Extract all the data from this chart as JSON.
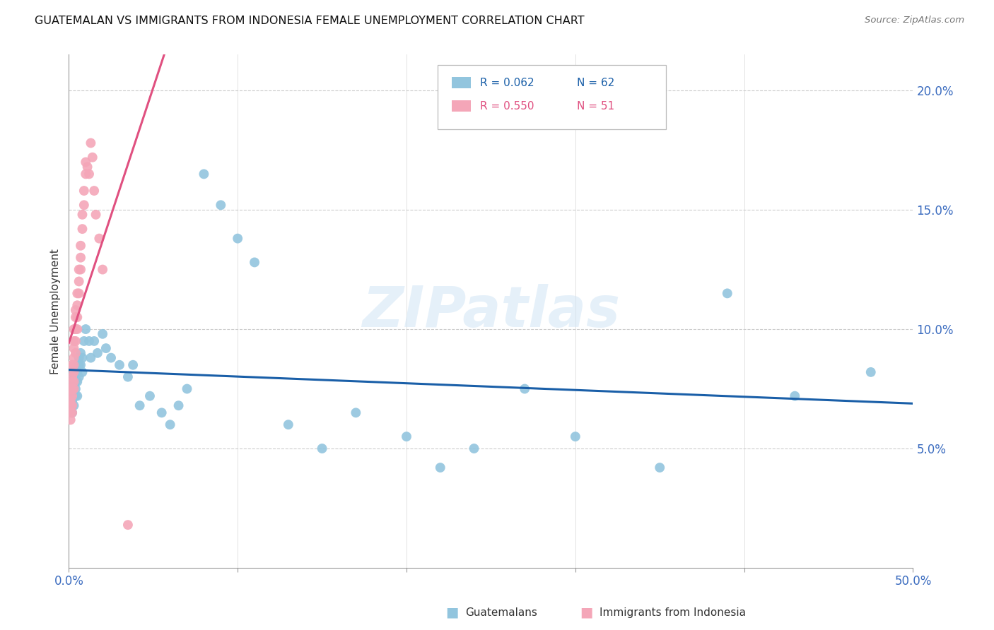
{
  "title": "GUATEMALAN VS IMMIGRANTS FROM INDONESIA FEMALE UNEMPLOYMENT CORRELATION CHART",
  "source": "Source: ZipAtlas.com",
  "ylabel": "Female Unemployment",
  "right_yticks": [
    "20.0%",
    "15.0%",
    "10.0%",
    "5.0%"
  ],
  "right_ytick_vals": [
    0.2,
    0.15,
    0.1,
    0.05
  ],
  "xmin": 0.0,
  "xmax": 0.5,
  "ymin": 0.0,
  "ymax": 0.215,
  "color_blue": "#92c5de",
  "color_pink": "#f4a6b8",
  "line_blue": "#1a5fa8",
  "line_pink": "#e05080",
  "guatemalan_x": [
    0.001,
    0.001,
    0.001,
    0.002,
    0.002,
    0.002,
    0.002,
    0.002,
    0.003,
    0.003,
    0.003,
    0.003,
    0.003,
    0.004,
    0.004,
    0.004,
    0.004,
    0.005,
    0.005,
    0.005,
    0.005,
    0.006,
    0.006,
    0.006,
    0.007,
    0.007,
    0.008,
    0.008,
    0.009,
    0.01,
    0.012,
    0.013,
    0.015,
    0.017,
    0.02,
    0.022,
    0.025,
    0.03,
    0.035,
    0.038,
    0.042,
    0.048,
    0.055,
    0.06,
    0.065,
    0.07,
    0.08,
    0.09,
    0.1,
    0.11,
    0.13,
    0.15,
    0.17,
    0.2,
    0.22,
    0.24,
    0.27,
    0.3,
    0.35,
    0.39,
    0.43,
    0.475
  ],
  "guatemalan_y": [
    0.08,
    0.075,
    0.072,
    0.078,
    0.072,
    0.07,
    0.068,
    0.065,
    0.082,
    0.078,
    0.075,
    0.072,
    0.068,
    0.08,
    0.078,
    0.075,
    0.072,
    0.085,
    0.082,
    0.078,
    0.072,
    0.088,
    0.085,
    0.08,
    0.09,
    0.085,
    0.088,
    0.082,
    0.095,
    0.1,
    0.095,
    0.088,
    0.095,
    0.09,
    0.098,
    0.092,
    0.088,
    0.085,
    0.08,
    0.085,
    0.068,
    0.072,
    0.065,
    0.06,
    0.068,
    0.075,
    0.165,
    0.152,
    0.138,
    0.128,
    0.06,
    0.05,
    0.065,
    0.055,
    0.042,
    0.05,
    0.075,
    0.055,
    0.042,
    0.115,
    0.072,
    0.082
  ],
  "indonesia_x": [
    0.001,
    0.001,
    0.001,
    0.001,
    0.001,
    0.001,
    0.002,
    0.002,
    0.002,
    0.002,
    0.002,
    0.002,
    0.002,
    0.003,
    0.003,
    0.003,
    0.003,
    0.003,
    0.003,
    0.003,
    0.003,
    0.004,
    0.004,
    0.004,
    0.004,
    0.004,
    0.005,
    0.005,
    0.005,
    0.005,
    0.006,
    0.006,
    0.006,
    0.007,
    0.007,
    0.007,
    0.008,
    0.008,
    0.009,
    0.009,
    0.01,
    0.01,
    0.011,
    0.012,
    0.013,
    0.014,
    0.015,
    0.016,
    0.018,
    0.02,
    0.035
  ],
  "indonesia_y": [
    0.075,
    0.072,
    0.07,
    0.068,
    0.065,
    0.062,
    0.085,
    0.08,
    0.078,
    0.075,
    0.072,
    0.068,
    0.065,
    0.1,
    0.095,
    0.092,
    0.088,
    0.085,
    0.082,
    0.078,
    0.075,
    0.108,
    0.105,
    0.1,
    0.095,
    0.09,
    0.115,
    0.11,
    0.105,
    0.1,
    0.125,
    0.12,
    0.115,
    0.135,
    0.13,
    0.125,
    0.148,
    0.142,
    0.158,
    0.152,
    0.17,
    0.165,
    0.168,
    0.165,
    0.178,
    0.172,
    0.158,
    0.148,
    0.138,
    0.125,
    0.018
  ],
  "watermark": "ZIPatlas"
}
